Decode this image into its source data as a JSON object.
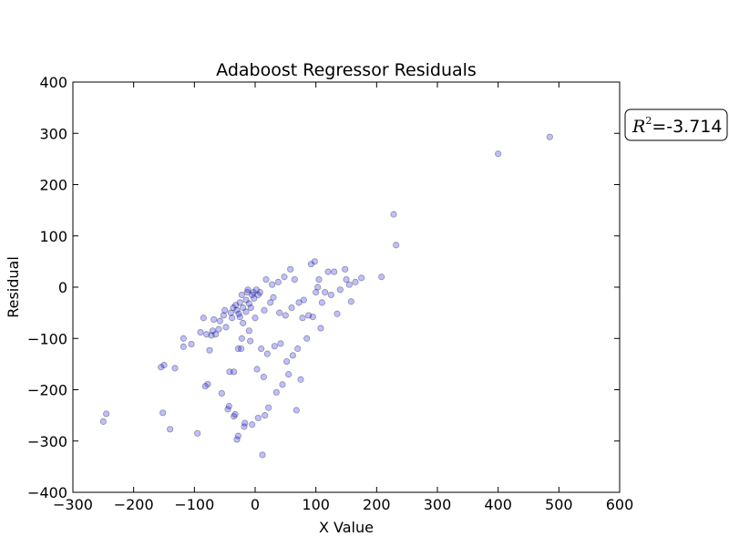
{
  "chart_data": {
    "type": "scatter",
    "title": "Adaboost Regressor Residuals",
    "xlabel": "X Value",
    "ylabel": "Residual",
    "xlim": [
      -300,
      600
    ],
    "ylim": [
      -400,
      400
    ],
    "xticks": [
      -300,
      -200,
      -100,
      0,
      100,
      200,
      300,
      400,
      500,
      600
    ],
    "yticks": [
      -400,
      -300,
      -200,
      -100,
      0,
      100,
      200,
      300,
      400
    ],
    "xtick_labels": [
      "−300",
      "−200",
      "−100",
      "0",
      "100",
      "200",
      "300",
      "400",
      "500",
      "600"
    ],
    "ytick_labels": [
      "−400",
      "−300",
      "−200",
      "−100",
      "0",
      "100",
      "200",
      "300",
      "400"
    ],
    "grid": false,
    "point_color": "#0000ff",
    "point_alpha": 0.25,
    "annotation": {
      "prefix": "R",
      "superscript": "2",
      "text": "=-3.714"
    },
    "points": [
      [
        -250,
        -262
      ],
      [
        -245,
        -247
      ],
      [
        -155,
        -156
      ],
      [
        -150,
        -152
      ],
      [
        -152,
        -245
      ],
      [
        -140,
        -277
      ],
      [
        -132,
        -158
      ],
      [
        -118,
        -100
      ],
      [
        -118,
        -116
      ],
      [
        -105,
        -111
      ],
      [
        -95,
        -285
      ],
      [
        -90,
        -88
      ],
      [
        -85,
        -60
      ],
      [
        -80,
        -92
      ],
      [
        -82,
        -193
      ],
      [
        -78,
        -189
      ],
      [
        -75,
        -123
      ],
      [
        -72,
        -94
      ],
      [
        -70,
        -85
      ],
      [
        -68,
        -63
      ],
      [
        -65,
        -92
      ],
      [
        -60,
        -82
      ],
      [
        -58,
        -66
      ],
      [
        -55,
        -207
      ],
      [
        -52,
        -55
      ],
      [
        -50,
        -45
      ],
      [
        -48,
        -78
      ],
      [
        -45,
        -238
      ],
      [
        -43,
        -232
      ],
      [
        -42,
        -165
      ],
      [
        -40,
        -50
      ],
      [
        -38,
        -60
      ],
      [
        -36,
        -40
      ],
      [
        -35,
        -165
      ],
      [
        -35,
        -252
      ],
      [
        -33,
        -248
      ],
      [
        -32,
        -35
      ],
      [
        -30,
        -45
      ],
      [
        -30,
        -297
      ],
      [
        -28,
        -290
      ],
      [
        -28,
        -120
      ],
      [
        -27,
        -52
      ],
      [
        -25,
        -30
      ],
      [
        -25,
        -58
      ],
      [
        -23,
        -120
      ],
      [
        -22,
        -100
      ],
      [
        -22,
        -15
      ],
      [
        -20,
        -40
      ],
      [
        -20,
        -70
      ],
      [
        -18,
        -272
      ],
      [
        -17,
        -265
      ],
      [
        -15,
        -25
      ],
      [
        -15,
        -48
      ],
      [
        -13,
        -10
      ],
      [
        -12,
        -5
      ],
      [
        -10,
        -32
      ],
      [
        -10,
        -85
      ],
      [
        -8,
        -105
      ],
      [
        -7,
        -40
      ],
      [
        -5,
        -15
      ],
      [
        -5,
        -268
      ],
      [
        -3,
        -10
      ],
      [
        -2,
        -22
      ],
      [
        0,
        -60
      ],
      [
        2,
        -5
      ],
      [
        3,
        -160
      ],
      [
        5,
        -255
      ],
      [
        5,
        -15
      ],
      [
        8,
        -10
      ],
      [
        10,
        -120
      ],
      [
        12,
        -327
      ],
      [
        14,
        -175
      ],
      [
        15,
        -45
      ],
      [
        16,
        -250
      ],
      [
        18,
        15
      ],
      [
        20,
        -130
      ],
      [
        22,
        -235
      ],
      [
        25,
        -30
      ],
      [
        28,
        5
      ],
      [
        30,
        -20
      ],
      [
        32,
        -115
      ],
      [
        35,
        -205
      ],
      [
        38,
        10
      ],
      [
        40,
        -50
      ],
      [
        42,
        -110
      ],
      [
        45,
        -190
      ],
      [
        48,
        20
      ],
      [
        50,
        -55
      ],
      [
        52,
        -145
      ],
      [
        55,
        -170
      ],
      [
        58,
        35
      ],
      [
        60,
        -40
      ],
      [
        62,
        -133
      ],
      [
        65,
        15
      ],
      [
        68,
        -240
      ],
      [
        70,
        -120
      ],
      [
        72,
        -30
      ],
      [
        75,
        -180
      ],
      [
        78,
        -60
      ],
      [
        80,
        -25
      ],
      [
        85,
        -100
      ],
      [
        88,
        -55
      ],
      [
        92,
        45
      ],
      [
        95,
        -58
      ],
      [
        98,
        50
      ],
      [
        100,
        -10
      ],
      [
        103,
        0
      ],
      [
        105,
        15
      ],
      [
        108,
        -80
      ],
      [
        110,
        -30
      ],
      [
        115,
        -10
      ],
      [
        120,
        30
      ],
      [
        125,
        -15
      ],
      [
        130,
        30
      ],
      [
        135,
        -52
      ],
      [
        140,
        -5
      ],
      [
        148,
        35
      ],
      [
        150,
        15
      ],
      [
        155,
        5
      ],
      [
        158,
        -28
      ],
      [
        165,
        10
      ],
      [
        175,
        18
      ],
      [
        208,
        20
      ],
      [
        228,
        142
      ],
      [
        232,
        82
      ],
      [
        400,
        260
      ],
      [
        485,
        293
      ]
    ]
  }
}
